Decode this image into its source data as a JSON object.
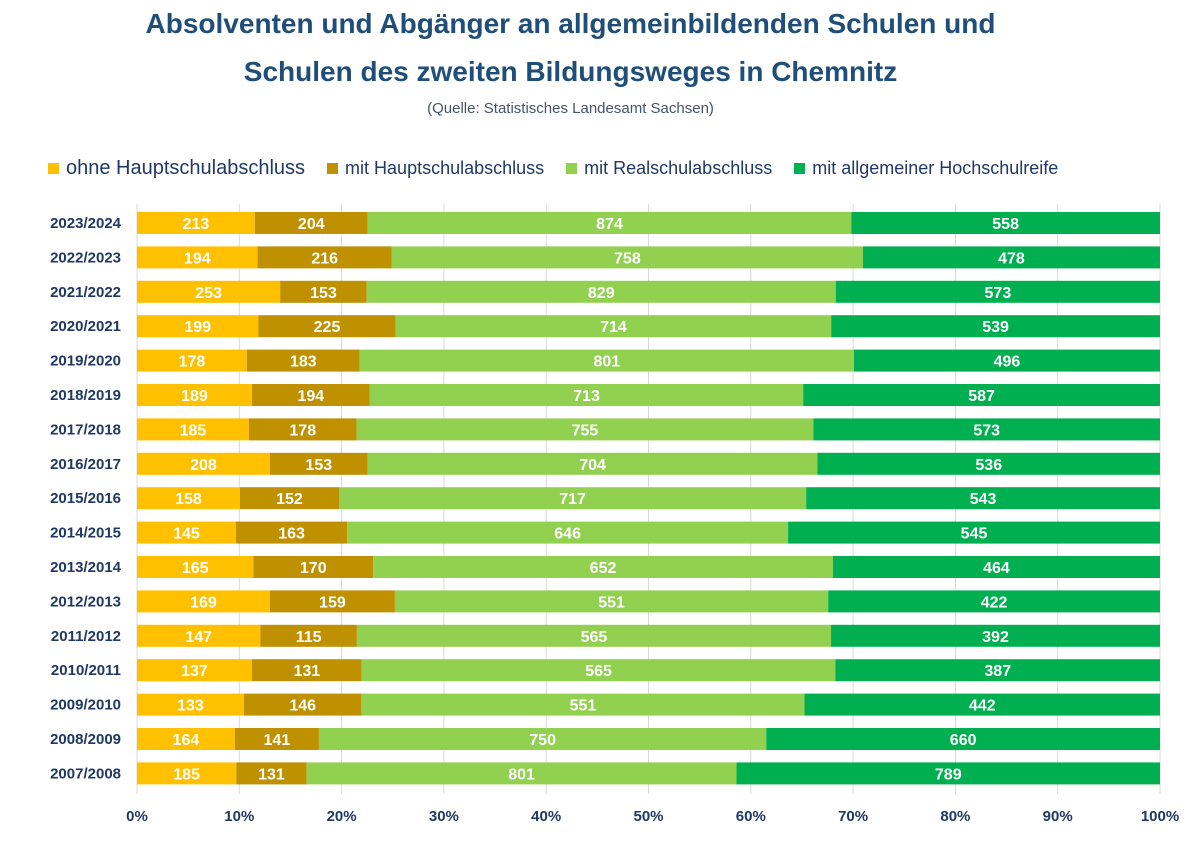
{
  "chart_data": {
    "type": "bar",
    "orientation": "horizontal",
    "stacked": "percent",
    "title_line1": "Absolventen und Abgänger an allgemeinbildenden Schulen und",
    "title_line2": "Schulen des zweiten Bildungsweges in Chemnitz",
    "subtitle": "(Quelle: Statistisches Landesamt Sachsen)",
    "legend_position": "top",
    "grid": true,
    "xlim": [
      0,
      100
    ],
    "x_ticks": [
      "0%",
      "10%",
      "20%",
      "30%",
      "40%",
      "50%",
      "60%",
      "70%",
      "80%",
      "90%",
      "100%"
    ],
    "categories": [
      "2023/2024",
      "2022/2023",
      "2021/2022",
      "2020/2021",
      "2019/2020",
      "2018/2019",
      "2017/2018",
      "2016/2017",
      "2015/2016",
      "2014/2015",
      "2013/2014",
      "2012/2013",
      "2011/2012",
      "2010/2011",
      "2009/2010",
      "2008/2009",
      "2007/2008"
    ],
    "series": [
      {
        "name": "ohne Hauptschulabschluss",
        "color": "#ffc000",
        "values": [
          213,
          194,
          253,
          199,
          178,
          189,
          185,
          208,
          158,
          145,
          165,
          169,
          147,
          137,
          133,
          164,
          185
        ]
      },
      {
        "name": "mit Hauptschulabschluss",
        "color": "#bf9000",
        "values": [
          204,
          216,
          153,
          225,
          183,
          194,
          178,
          153,
          152,
          163,
          170,
          159,
          115,
          131,
          146,
          141,
          131
        ]
      },
      {
        "name": "mit Realschulabschluss",
        "color": "#92d050",
        "values": [
          874,
          758,
          829,
          714,
          801,
          713,
          755,
          704,
          717,
          646,
          652,
          551,
          565,
          565,
          551,
          750,
          801
        ]
      },
      {
        "name": "mit allgemeiner Hochschulreife",
        "color": "#00b050",
        "values": [
          558,
          478,
          573,
          539,
          496,
          587,
          573,
          536,
          543,
          545,
          464,
          422,
          392,
          387,
          442,
          660,
          789
        ]
      }
    ]
  },
  "colors": {
    "title": "#1f4e79",
    "text": "#1f3864",
    "grid": "#d9d9d9"
  }
}
